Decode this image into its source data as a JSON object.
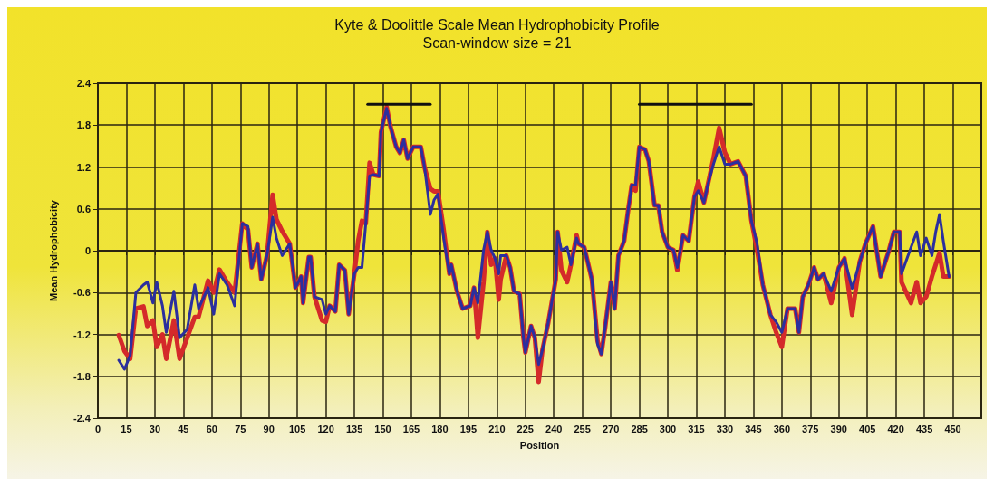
{
  "chart_data": {
    "type": "line",
    "title": "Kyte & Doolittle Scale Mean Hydrophobicity Profile",
    "subtitle": "Scan-window size = 21",
    "xlabel": "Position",
    "ylabel": "Mean Hydrophobicity",
    "x": [
      11,
      14,
      17,
      20,
      24,
      26,
      29,
      31,
      34,
      36,
      40,
      43,
      47,
      51,
      53,
      58,
      61,
      64,
      68,
      72,
      76,
      79,
      81,
      84,
      86,
      89,
      92,
      94,
      97,
      101,
      104,
      107,
      108,
      111,
      112,
      114,
      118,
      120,
      122,
      125,
      127,
      130,
      132,
      135,
      137,
      139,
      141,
      143,
      145,
      148,
      149,
      152,
      154,
      157,
      159,
      161,
      163,
      166,
      170,
      172,
      175,
      177,
      179,
      182,
      185,
      186,
      189,
      192,
      196,
      198,
      200,
      203,
      205,
      207,
      209,
      211,
      212,
      215,
      217,
      219,
      222,
      224,
      225,
      228,
      230,
      232,
      234,
      237,
      241,
      242,
      244,
      247,
      249,
      252,
      253,
      256,
      260,
      263,
      265,
      267,
      270,
      272,
      274,
      277,
      279,
      281,
      283,
      285,
      288,
      290,
      293,
      295,
      297,
      300,
      303,
      305,
      308,
      311,
      314,
      316,
      319,
      321,
      324,
      327,
      330,
      333,
      337,
      341,
      344,
      347,
      350,
      354,
      357,
      360,
      363,
      367,
      369,
      371,
      374,
      377,
      379,
      382,
      386,
      390,
      393,
      397,
      401,
      404,
      408,
      412,
      416,
      419,
      422,
      423,
      428,
      431,
      433,
      436,
      439,
      441,
      443,
      445,
      448
    ],
    "series": [
      {
        "color": "#d42a2a",
        "values": [
          -1.21,
          -1.44,
          -1.55,
          -0.83,
          -0.8,
          -1.08,
          -1.0,
          -1.38,
          -1.2,
          -1.55,
          -1.0,
          -1.55,
          -1.25,
          -0.95,
          -0.95,
          -0.43,
          -0.6,
          -0.27,
          -0.45,
          -0.6,
          0.39,
          0.3,
          -0.24,
          0.1,
          -0.41,
          -0.07,
          0.8,
          0.45,
          0.28,
          0.1,
          -0.53,
          -0.37,
          -0.75,
          -0.09,
          -0.09,
          -0.66,
          -1.0,
          -1.02,
          -0.79,
          -0.87,
          -0.2,
          -0.28,
          -0.91,
          -0.33,
          0.14,
          0.43,
          0.39,
          1.26,
          1.09,
          1.07,
          1.7,
          2.06,
          1.78,
          1.49,
          1.4,
          1.59,
          1.32,
          1.49,
          1.49,
          1.19,
          0.89,
          0.85,
          0.85,
          0.3,
          -0.33,
          -0.2,
          -0.58,
          -0.83,
          -0.79,
          -0.53,
          -1.25,
          -0.45,
          0.27,
          -0.2,
          -0.11,
          -0.7,
          -0.41,
          -0.07,
          -0.24,
          -0.58,
          -0.62,
          -1.25,
          -1.46,
          -1.08,
          -1.25,
          -1.88,
          -1.42,
          -1.04,
          -0.41,
          0.27,
          -0.28,
          -0.45,
          -0.2,
          0.22,
          0.1,
          0.05,
          -0.41,
          -1.29,
          -1.48,
          -1.1,
          -0.45,
          -0.83,
          -0.07,
          0.14,
          0.56,
          0.94,
          0.86,
          1.49,
          1.45,
          1.28,
          0.65,
          0.65,
          0.27,
          0.05,
          0.01,
          -0.28,
          0.22,
          0.14,
          0.77,
          0.99,
          0.69,
          0.94,
          1.32,
          1.76,
          1.41,
          1.24,
          1.28,
          1.07,
          0.43,
          0.01,
          -0.49,
          -0.92,
          -1.17,
          -1.38,
          -0.83,
          -0.83,
          -1.17,
          -0.66,
          -0.49,
          -0.24,
          -0.41,
          -0.33,
          -0.75,
          -0.24,
          -0.11,
          -0.92,
          -0.16,
          0.1,
          0.35,
          -0.37,
          -0.03,
          0.27,
          0.27,
          -0.45,
          -0.75,
          -0.45,
          -0.75,
          -0.66,
          -0.37,
          -0.2,
          -0.03,
          -0.37,
          -0.37
        ]
      },
      {
        "color": "#2b2f9e",
        "values": [
          -1.57,
          -1.7,
          -1.5,
          -0.6,
          -0.49,
          -0.45,
          -0.75,
          -0.45,
          -0.79,
          -1.17,
          -0.58,
          -1.25,
          -1.13,
          -0.49,
          -0.83,
          -0.53,
          -0.91,
          -0.33,
          -0.49,
          -0.79,
          0.39,
          0.35,
          -0.24,
          0.1,
          -0.41,
          -0.07,
          0.48,
          0.18,
          -0.07,
          0.1,
          -0.53,
          -0.37,
          -0.75,
          -0.09,
          -0.09,
          -0.66,
          -0.7,
          -0.91,
          -0.79,
          -0.87,
          -0.2,
          -0.28,
          -0.91,
          -0.33,
          -0.24,
          -0.24,
          0.39,
          1.07,
          1.09,
          1.07,
          1.7,
          2.04,
          1.78,
          1.49,
          1.4,
          1.59,
          1.32,
          1.49,
          1.49,
          1.19,
          0.52,
          0.73,
          0.81,
          0.18,
          -0.33,
          -0.2,
          -0.58,
          -0.83,
          -0.79,
          -0.53,
          -0.75,
          0.01,
          0.27,
          0.01,
          -0.11,
          -0.33,
          -0.07,
          -0.07,
          -0.24,
          -0.58,
          -0.62,
          -1.25,
          -1.46,
          -1.08,
          -1.25,
          -1.63,
          -1.42,
          -1.04,
          -0.41,
          0.27,
          0.01,
          0.05,
          -0.2,
          0.18,
          0.1,
          0.05,
          -0.41,
          -1.34,
          -1.48,
          -1.1,
          -0.45,
          -0.83,
          -0.07,
          0.14,
          0.56,
          0.94,
          0.94,
          1.49,
          1.45,
          1.28,
          0.65,
          0.65,
          0.27,
          0.05,
          0.01,
          -0.24,
          0.22,
          0.14,
          0.77,
          0.86,
          0.69,
          0.94,
          1.24,
          1.49,
          1.24,
          1.24,
          1.28,
          1.07,
          0.43,
          0.1,
          -0.49,
          -0.92,
          -1.02,
          -1.17,
          -0.83,
          -0.83,
          -1.17,
          -0.66,
          -0.49,
          -0.24,
          -0.41,
          -0.33,
          -0.58,
          -0.24,
          -0.11,
          -0.54,
          -0.16,
          0.1,
          0.35,
          -0.37,
          -0.03,
          0.27,
          0.27,
          -0.33,
          0.05,
          0.27,
          -0.07,
          0.18,
          -0.07,
          0.27,
          0.52,
          0.14,
          -0.37
        ]
      },
      {
        "color": "#111111",
        "x": [
          142,
          175
        ],
        "values": [
          2.1,
          2.1
        ]
      },
      {
        "color": "#111111",
        "x": [
          285,
          344
        ],
        "values": [
          2.1,
          2.1
        ]
      }
    ],
    "xlim": [
      0,
      465
    ],
    "xticks": [
      0,
      15,
      30,
      45,
      60,
      75,
      90,
      105,
      120,
      135,
      150,
      165,
      180,
      195,
      210,
      225,
      240,
      255,
      270,
      285,
      300,
      315,
      330,
      345,
      360,
      375,
      390,
      405,
      420,
      435,
      450
    ],
    "ylim": [
      -2.4,
      2.4
    ],
    "yticks": [
      -2.4,
      -1.8,
      -1.2,
      -0.6,
      0,
      0.6,
      1.2,
      1.8,
      2.4
    ],
    "grid": true,
    "marker": "none",
    "line_style": "solid"
  }
}
